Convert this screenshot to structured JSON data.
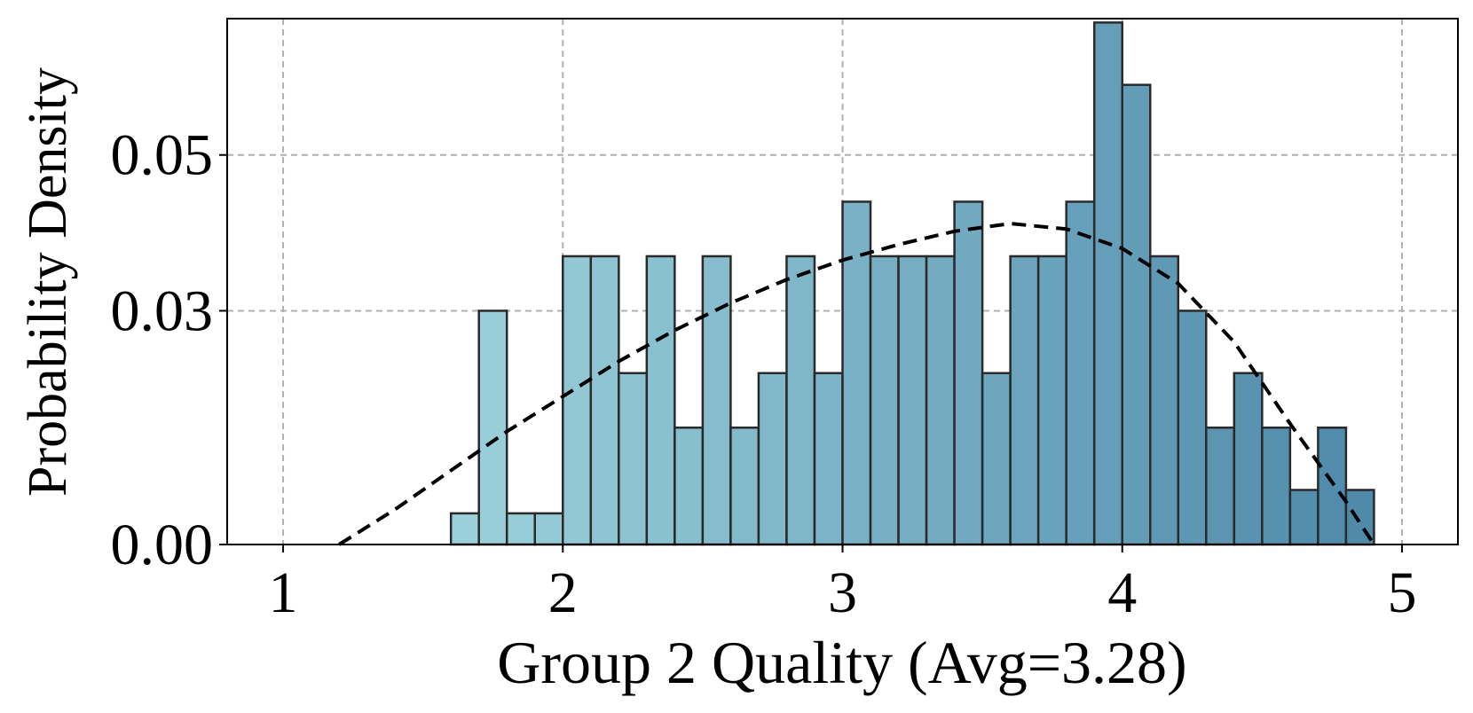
{
  "chart_data": {
    "type": "bar",
    "xlabel": "Group 2 Quality (Avg=3.28)",
    "ylabel": "Probability Density",
    "xlim": [
      0.8,
      5.2
    ],
    "ylim": [
      0,
      0.0675
    ],
    "xticks": [
      1,
      2,
      3,
      4,
      5
    ],
    "xtick_labels": [
      "1",
      "2",
      "3",
      "4",
      "5"
    ],
    "yticks": [
      0.0,
      0.03,
      0.05
    ],
    "ytick_labels": [
      "0.00",
      "0.03",
      "0.05"
    ],
    "grid": true,
    "bin_start": 1.6,
    "bin_width": 0.1,
    "values": [
      0.004,
      0.03,
      0.004,
      0.004,
      0.037,
      0.037,
      0.022,
      0.037,
      0.015,
      0.037,
      0.015,
      0.022,
      0.037,
      0.022,
      0.044,
      0.037,
      0.037,
      0.037,
      0.044,
      0.022,
      0.037,
      0.037,
      0.044,
      0.067,
      0.059,
      0.037,
      0.03,
      0.015,
      0.022,
      0.015,
      0.007,
      0.015,
      0.007
    ],
    "fit_curve": {
      "style": "dashed",
      "color": "#000000",
      "x": [
        1.2,
        1.4,
        1.6,
        1.8,
        2.0,
        2.2,
        2.4,
        2.6,
        2.8,
        3.0,
        3.2,
        3.4,
        3.6,
        3.8,
        4.0,
        4.2,
        4.4,
        4.6,
        4.8,
        4.9
      ],
      "y": [
        0.0,
        0.0045,
        0.0095,
        0.0145,
        0.019,
        0.0235,
        0.0275,
        0.031,
        0.034,
        0.0365,
        0.0385,
        0.0402,
        0.0412,
        0.0405,
        0.038,
        0.0335,
        0.026,
        0.0155,
        0.0055,
        0.0
      ]
    },
    "colors": {
      "bar_start": "#9bd0da",
      "bar_end": "#4f8aab",
      "bar_edge": "#2a2a2a",
      "grid": "#b0b0b0"
    }
  }
}
